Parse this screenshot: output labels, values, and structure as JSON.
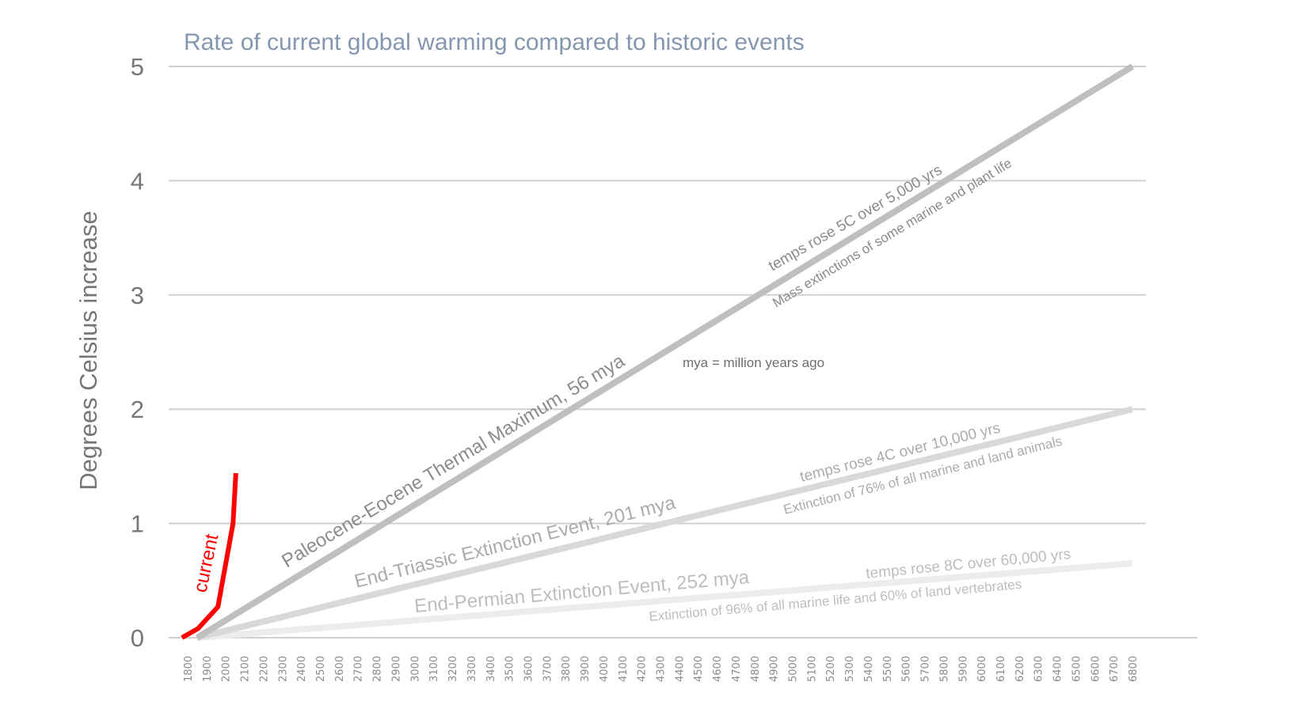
{
  "chart_data": {
    "type": "line",
    "title": "Rate of current global warming compared to historic events",
    "xlabel": "",
    "ylabel": "Degrees Celsius increase",
    "ylim": [
      0,
      5
    ],
    "yticks": [
      "0",
      "1",
      "2",
      "3",
      "4",
      "5"
    ],
    "xticks": [
      "1800",
      "1900",
      "2000",
      "2100",
      "2200",
      "2300",
      "2400",
      "2500",
      "2600",
      "2700",
      "2800",
      "2900",
      "3000",
      "3100",
      "3200",
      "3300",
      "3400",
      "3500",
      "3600",
      "3700",
      "3800",
      "3900",
      "4000",
      "4100",
      "4200",
      "4300",
      "4400",
      "4500",
      "4600",
      "4700",
      "4800",
      "4900",
      "5000",
      "5100",
      "5200",
      "5300",
      "5400",
      "5500",
      "5600",
      "5700",
      "5800",
      "5900",
      "6000",
      "6100",
      "6200",
      "6300",
      "6400",
      "6500",
      "6600",
      "6700",
      "6800"
    ],
    "grid": true,
    "series": [
      {
        "name": "current",
        "color": "#ff0000",
        "x": [
          1770,
          1855,
          1960,
          2040,
          2055
        ],
        "y": [
          0,
          0.08,
          0.27,
          1.0,
          1.44
        ]
      },
      {
        "name": "Paleocene-Eocene Thermal Maximum, 56 mya",
        "color": "#bfbfbf",
        "x": [
          1850,
          6800
        ],
        "y": [
          0,
          5
        ]
      },
      {
        "name": "End-Triassic Extinction Event, 201 mya",
        "color": "#d9d9d9",
        "x": [
          1850,
          6800
        ],
        "y": [
          0,
          2
        ]
      },
      {
        "name": "End-Permian Extinction Event, 252 mya",
        "color": "#ececec",
        "x": [
          1850,
          6800
        ],
        "y": [
          0,
          0.65
        ]
      }
    ],
    "annotations": {
      "current": "current",
      "petm_name": "Paleocene-Eocene Thermal Maximum, 56 mya",
      "petm_rate": "temps rose 5C over 5,000 yrs",
      "petm_effect": "Mass extinctions of some marine and plant life",
      "triassic_name": "End-Triassic Extinction Event, 201 mya",
      "triassic_rate": "temps rose 4C over 10,000 yrs",
      "triassic_effect": "Extinction of 76% of all marine and land animals",
      "permian_name": "End-Permian Extinction Event, 252 mya",
      "permian_rate": "temps rose 8C over 60,000 yrs",
      "permian_effect": "Extinction of 96% of all marine life and 60% of land vertebrates",
      "mya_note": "mya = million years ago"
    }
  }
}
